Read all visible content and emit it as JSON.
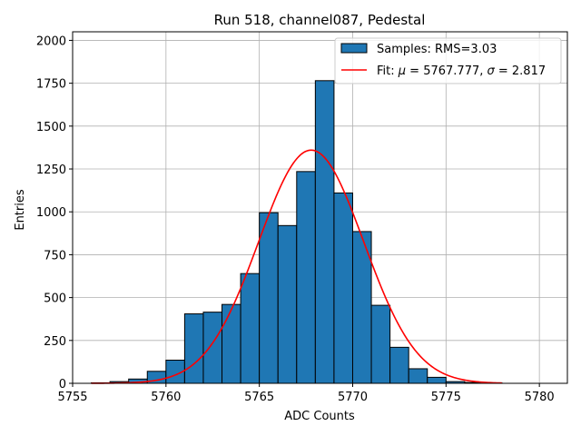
{
  "chart_data": {
    "type": "bar",
    "title": "Run 518, channel087, Pedestal",
    "xlabel": "ADC Counts",
    "ylabel": "Entries",
    "xlim": [
      5755,
      5781.5
    ],
    "ylim": [
      0,
      2050
    ],
    "xticks": [
      5755,
      5760,
      5765,
      5770,
      5775,
      5780
    ],
    "yticks": [
      0,
      250,
      500,
      750,
      1000,
      1250,
      1500,
      1750,
      2000
    ],
    "grid": true,
    "legend_position": "top-right",
    "histogram": {
      "name": "Samples: RMS=3.03",
      "color": "#1f77b4",
      "bin_width": 1,
      "bin_lefts": [
        5756,
        5757,
        5758,
        5759,
        5760,
        5761,
        5762,
        5763,
        5764,
        5765,
        5766,
        5767,
        5768,
        5769,
        5770,
        5771,
        5772,
        5773,
        5774,
        5775,
        5776,
        5777
      ],
      "counts": [
        3,
        10,
        25,
        70,
        135,
        405,
        415,
        460,
        640,
        995,
        920,
        1235,
        1765,
        1110,
        885,
        455,
        210,
        85,
        35,
        10,
        5,
        2
      ]
    },
    "fit": {
      "name_prefix": "Fit: ",
      "mu_label": "μ",
      "mu_text": " = 5767.777, ",
      "sigma_label": "σ",
      "sigma_text": " = 2.817",
      "mu": 5767.777,
      "sigma": 2.817,
      "amplitude": 1360,
      "x_range": [
        5756,
        5778
      ],
      "color": "#ff0000"
    }
  }
}
